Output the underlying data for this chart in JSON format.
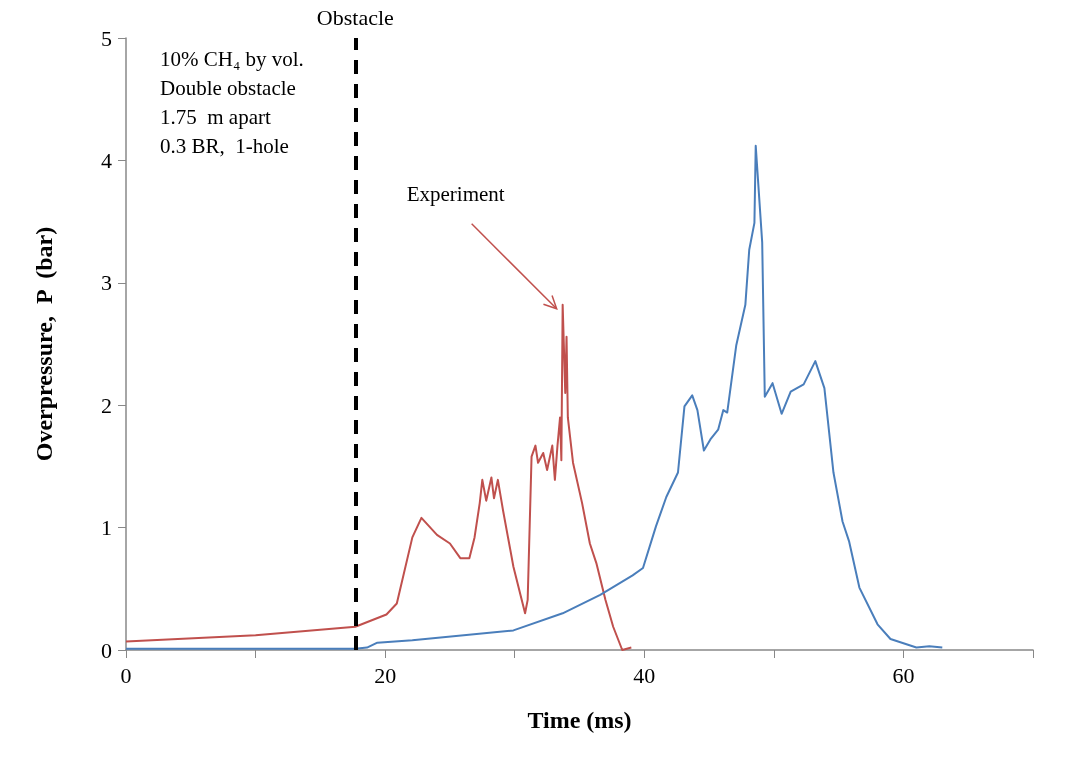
{
  "chart_data": {
    "type": "line",
    "xlabel": "Time (ms)",
    "ylabel": "Overpressure,  P  (bar)",
    "xlim": [
      0,
      70
    ],
    "xticks": [
      {
        "value": 0,
        "label": "0"
      },
      {
        "value": 10,
        "label": null
      },
      {
        "value": 20,
        "label": "20"
      },
      {
        "value": 30,
        "label": null
      },
      {
        "value": 40,
        "label": "40"
      },
      {
        "value": 50,
        "label": null
      },
      {
        "value": 60,
        "label": "60"
      },
      {
        "value": 70,
        "label": null
      }
    ],
    "ylim": [
      0,
      5
    ],
    "yticks": [
      0,
      1,
      2,
      3,
      4,
      5
    ],
    "grid": false,
    "marker": "none",
    "line_style": "solid",
    "series": [
      {
        "color": "#c0504d",
        "x": [
          0,
          10,
          17.7,
          20.1,
          20.9,
          22.1,
          22.8,
          24.0,
          25.0,
          25.8,
          26.5,
          26.9,
          27.3,
          27.5,
          27.8,
          28.2,
          28.4,
          28.7,
          29.1,
          29.9,
          30.8,
          31.0,
          31.3,
          31.6,
          31.8,
          32.2,
          32.5,
          32.9,
          33.1,
          33.3,
          33.5,
          33.6,
          33.7,
          33.9,
          34.0,
          34.1,
          34.5,
          35.2,
          35.8,
          36.3,
          37.0,
          37.6,
          38.3,
          39.0
        ],
        "values": [
          0.07,
          0.12,
          0.19,
          0.29,
          0.38,
          0.92,
          1.08,
          0.94,
          0.87,
          0.75,
          0.75,
          0.92,
          1.2,
          1.39,
          1.22,
          1.41,
          1.24,
          1.39,
          1.14,
          0.68,
          0.3,
          0.41,
          1.58,
          1.67,
          1.53,
          1.61,
          1.47,
          1.67,
          1.39,
          1.67,
          1.9,
          1.55,
          2.82,
          2.1,
          2.56,
          1.9,
          1.53,
          1.2,
          0.87,
          0.71,
          0.41,
          0.19,
          0,
          0.02
        ]
      },
      {
        "color": "#4a7ebb",
        "x": [
          0,
          17.7,
          18.6,
          19.4,
          22.1,
          29.9,
          33.7,
          36.6,
          39.1,
          39.9,
          40.9,
          41.7,
          42.6,
          43.1,
          43.7,
          44.1,
          44.6,
          45.1,
          45.7,
          46.1,
          46.4,
          47.1,
          47.8,
          48.1,
          48.5,
          48.6,
          49.1,
          49.3,
          49.9,
          50.6,
          51.3,
          52.3,
          53.2,
          53.9,
          54.6,
          55.3,
          55.8,
          56.6,
          58.0,
          59.0,
          61.0,
          62.0,
          63.0
        ],
        "values": [
          0.01,
          0.01,
          0.02,
          0.06,
          0.08,
          0.16,
          0.3,
          0.45,
          0.61,
          0.67,
          1.01,
          1.25,
          1.45,
          1.99,
          2.08,
          1.96,
          1.63,
          1.72,
          1.8,
          1.96,
          1.94,
          2.49,
          2.82,
          3.27,
          3.49,
          4.12,
          3.33,
          2.07,
          2.18,
          1.93,
          2.11,
          2.17,
          2.36,
          2.14,
          1.45,
          1.05,
          0.89,
          0.51,
          0.21,
          0.09,
          0.02,
          0.03,
          0.02
        ]
      }
    ],
    "ref_lines": [
      {
        "axis": "x",
        "value": 17.7,
        "label": "Obstacle",
        "color": "#000000",
        "line_style": "dashed"
      }
    ],
    "annotations": [
      "10% CH₄ by vol.",
      "Double obstacle",
      "1.75  m apart",
      "0.3 BR,  1-hole",
      {
        "text": "Experiment",
        "x": 33.7,
        "y": 2.82
      }
    ]
  }
}
